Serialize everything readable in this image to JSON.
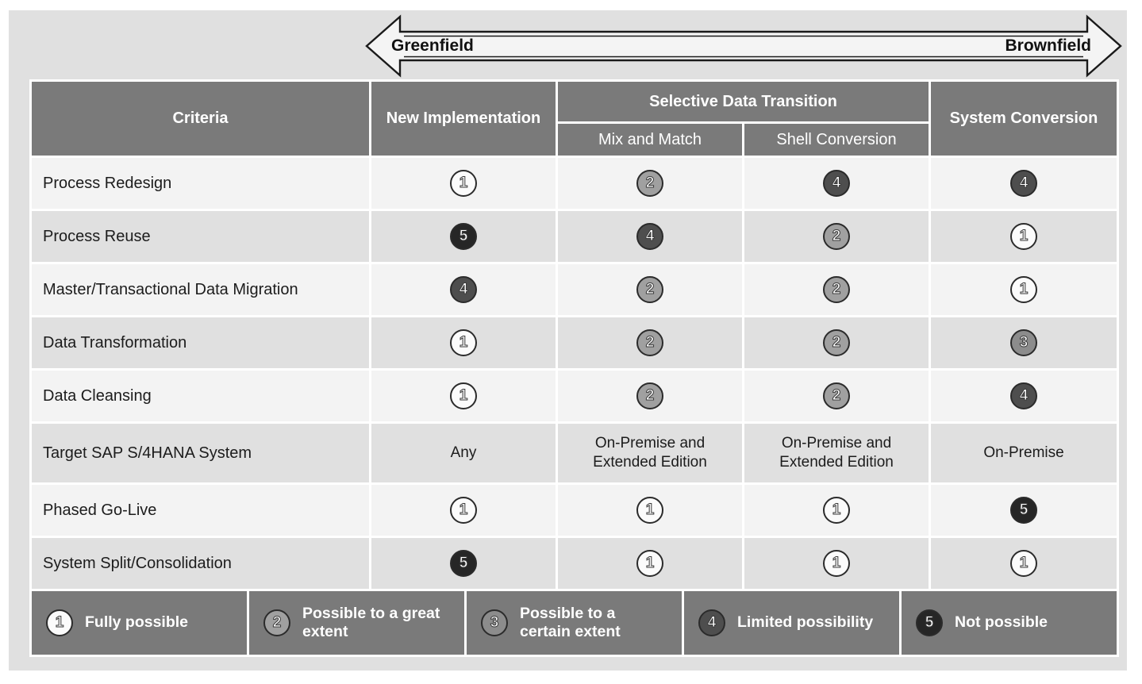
{
  "colors": {
    "panel_bg": "#e0e0e0",
    "header_bg": "#7a7a7a",
    "row_light": "#f3f3f3",
    "row_dark": "#e0e0e0",
    "rating_border": "#2b2b2b",
    "rating_bg": {
      "1": "#fbfbfb",
      "2": "#a0a0a0",
      "3": "#8c8c8c",
      "4": "#4e4e4e",
      "5": "#262626"
    }
  },
  "arrow": {
    "left_label": "Greenfield",
    "right_label": "Brownfield"
  },
  "table": {
    "header": {
      "criteria": "Criteria",
      "new_implementation": "New Implementation",
      "selective_group": "Selective Data Transition",
      "mix_and_match": "Mix and Match",
      "shell_conversion": "Shell Conversion",
      "system_conversion": "System Conversion"
    },
    "rows": [
      {
        "criteria": "Process Redesign",
        "cells": [
          {
            "type": "rating",
            "value": 1
          },
          {
            "type": "rating",
            "value": 2
          },
          {
            "type": "rating",
            "value": 4
          },
          {
            "type": "rating",
            "value": 4
          }
        ]
      },
      {
        "criteria": "Process Reuse",
        "cells": [
          {
            "type": "rating",
            "value": 5
          },
          {
            "type": "rating",
            "value": 4
          },
          {
            "type": "rating",
            "value": 2
          },
          {
            "type": "rating",
            "value": 1
          }
        ]
      },
      {
        "criteria": "Master/Transactional Data Migration",
        "cells": [
          {
            "type": "rating",
            "value": 4
          },
          {
            "type": "rating",
            "value": 2
          },
          {
            "type": "rating",
            "value": 2
          },
          {
            "type": "rating",
            "value": 1
          }
        ]
      },
      {
        "criteria": "Data Transformation",
        "cells": [
          {
            "type": "rating",
            "value": 1
          },
          {
            "type": "rating",
            "value": 2
          },
          {
            "type": "rating",
            "value": 2
          },
          {
            "type": "rating",
            "value": 3
          }
        ]
      },
      {
        "criteria": "Data Cleansing",
        "cells": [
          {
            "type": "rating",
            "value": 1
          },
          {
            "type": "rating",
            "value": 2
          },
          {
            "type": "rating",
            "value": 2
          },
          {
            "type": "rating",
            "value": 4
          }
        ]
      },
      {
        "criteria": "Target SAP S/4HANA System",
        "cells": [
          {
            "type": "text",
            "value": "Any"
          },
          {
            "type": "text",
            "value": "On-Premise and Extended Edition"
          },
          {
            "type": "text",
            "value": "On-Premise and Extended Edition"
          },
          {
            "type": "text",
            "value": "On-Premise"
          }
        ]
      },
      {
        "criteria": "Phased Go-Live",
        "cells": [
          {
            "type": "rating",
            "value": 1
          },
          {
            "type": "rating",
            "value": 1
          },
          {
            "type": "rating",
            "value": 1
          },
          {
            "type": "rating",
            "value": 5
          }
        ]
      },
      {
        "criteria": "System Split/Consolidation",
        "cells": [
          {
            "type": "rating",
            "value": 5
          },
          {
            "type": "rating",
            "value": 1
          },
          {
            "type": "rating",
            "value": 1
          },
          {
            "type": "rating",
            "value": 1
          }
        ]
      }
    ]
  },
  "legend": [
    {
      "value": 1,
      "label": "Fully possible"
    },
    {
      "value": 2,
      "label": "Possible to a great extent"
    },
    {
      "value": 3,
      "label": "Possible to a certain extent"
    },
    {
      "value": 4,
      "label": "Limited possibility"
    },
    {
      "value": 5,
      "label": "Not possible"
    }
  ]
}
